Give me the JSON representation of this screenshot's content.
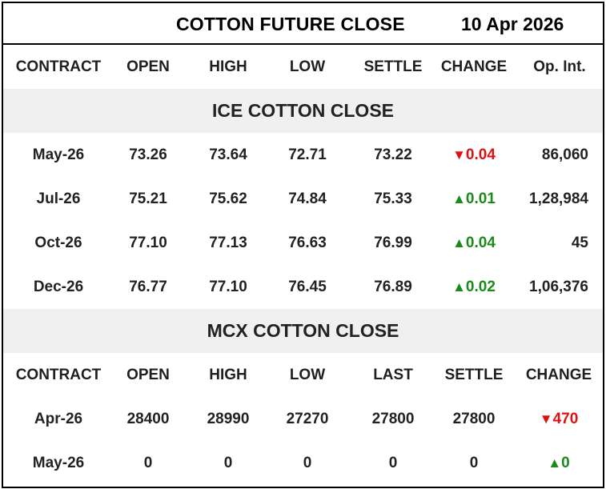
{
  "header": {
    "title": "COTTON FUTURE CLOSE",
    "date": "10 Apr 2026"
  },
  "colors": {
    "down": "#e01010",
    "up": "#1a8a1a",
    "band": "#f0f0f0"
  },
  "ice": {
    "columns": [
      "CONTRACT",
      "OPEN",
      "HIGH",
      "LOW",
      "SETTLE",
      "CHANGE",
      "Op. Int."
    ],
    "section_title": "ICE COTTON CLOSE",
    "rows": [
      {
        "contract": "May-26",
        "open": "73.26",
        "high": "73.64",
        "low": "72.71",
        "settle": "73.22",
        "change_arrow": "▼",
        "change": "0.04",
        "direction": "down",
        "oi": "86,060"
      },
      {
        "contract": "Jul-26",
        "open": "75.21",
        "high": "75.62",
        "low": "74.84",
        "settle": "75.33",
        "change_arrow": "▲",
        "change": "0.01",
        "direction": "up",
        "oi": "1,28,984"
      },
      {
        "contract": "Oct-26",
        "open": "77.10",
        "high": "77.13",
        "low": "76.63",
        "settle": "76.99",
        "change_arrow": "▲",
        "change": "0.04",
        "direction": "up",
        "oi": "45"
      },
      {
        "contract": "Dec-26",
        "open": "76.77",
        "high": "77.10",
        "low": "76.45",
        "settle": "76.89",
        "change_arrow": "▲",
        "change": "0.02",
        "direction": "up",
        "oi": "1,06,376"
      }
    ]
  },
  "mcx": {
    "section_title": "MCX COTTON CLOSE",
    "columns": [
      "CONTRACT",
      "OPEN",
      "HIGH",
      "LOW",
      "LAST",
      "SETTLE",
      "CHANGE"
    ],
    "rows": [
      {
        "contract": "Apr-26",
        "open": "28400",
        "high": "28990",
        "low": "27270",
        "last": "27800",
        "settle": "27800",
        "change_arrow": "▼",
        "change": "470",
        "direction": "down"
      },
      {
        "contract": "May-26",
        "open": "0",
        "high": "0",
        "low": "0",
        "last": "0",
        "settle": "0",
        "change_arrow": "▲",
        "change": "0",
        "direction": "up"
      }
    ]
  }
}
